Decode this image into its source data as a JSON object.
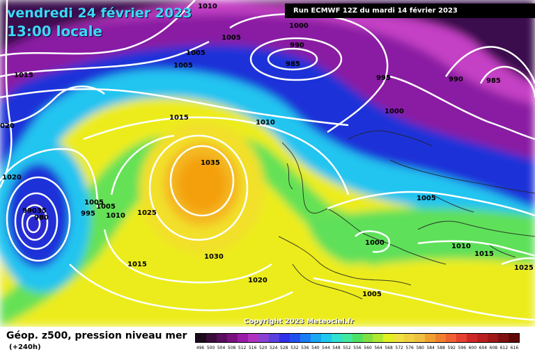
{
  "header": {
    "date": "vendredi 24 février 2023",
    "time": "13:00 locale",
    "run": "Run ECMWF 12Z du mardi 14 février 2023"
  },
  "copyright": "Copyright 2023 Meteociel.fr",
  "footer": {
    "title": "Géop. z500, pression niveau mer",
    "subtitle": "(+240h)"
  },
  "colors": {
    "background_deep": "#3b0a4e",
    "purple": "#8a1ea3",
    "magenta": "#c43fc4",
    "blue": "#1e30d8",
    "cyan": "#22c4f0",
    "green": "#5ee05a",
    "yellow": "#ecec1c",
    "orange": "#f4a010"
  },
  "colorbar": {
    "labels": [
      "496",
      "500",
      "504",
      "508",
      "512",
      "516",
      "520",
      "524",
      "528",
      "532",
      "536",
      "540",
      "544",
      "548",
      "552",
      "556",
      "560",
      "564",
      "568",
      "572",
      "576",
      "580",
      "584",
      "588",
      "592",
      "596",
      "600",
      "604",
      "608",
      "612",
      "616"
    ],
    "colors": [
      "#1a0a1a",
      "#3a0c3a",
      "#5a0d5e",
      "#7a1080",
      "#9a1aa8",
      "#b030c0",
      "#8a40d0",
      "#5a40e0",
      "#3030e8",
      "#2050f0",
      "#1a7cf4",
      "#18a8f2",
      "#20c8f0",
      "#30e0d0",
      "#40e8a0",
      "#50e060",
      "#80e040",
      "#b0e830",
      "#e0f020",
      "#f0e040",
      "#f0d040",
      "#f0c040",
      "#f0a030",
      "#f08030",
      "#f06030",
      "#e84030",
      "#d02828",
      "#b82020",
      "#a01818",
      "#801010",
      "#600808"
    ]
  },
  "isobar_labels": [
    "1010",
    "1005",
    "1005",
    "1005",
    "1015",
    "1000",
    "990",
    "985",
    "995",
    "990",
    "985",
    "1000",
    "1015",
    "1010",
    "1020",
    "1035",
    "1025",
    "1005",
    "1005",
    "995",
    "1010",
    "99035",
    "980",
    "1030",
    "1015",
    "1005",
    "1000",
    "1010",
    "1015",
    "1025",
    "1020",
    "1005",
    "020"
  ]
}
